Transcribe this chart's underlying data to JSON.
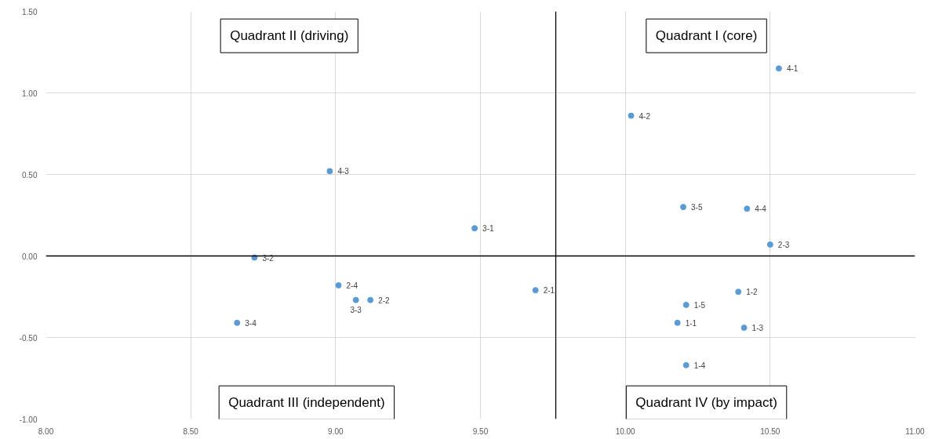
{
  "chart_data": {
    "type": "scatter",
    "color": "#5b9bd5",
    "marker": "circle",
    "grid": true,
    "x": [
      10.18,
      10.39,
      10.41,
      10.21,
      10.21,
      9.69,
      9.12,
      10.5,
      9.01,
      9.48,
      8.72,
      9.07,
      8.66,
      10.2,
      10.53,
      10.02,
      8.98,
      10.42
    ],
    "values": [
      -0.41,
      -0.22,
      -0.44,
      -0.67,
      -0.3,
      -0.21,
      -0.27,
      0.07,
      -0.18,
      0.17,
      -0.01,
      -0.27,
      -0.41,
      0.3,
      1.15,
      0.86,
      0.52,
      0.29
    ],
    "xlim": [
      8.0,
      11.0
    ],
    "ylim": [
      -1.0,
      1.5
    ],
    "xticks": [
      {
        "value": 8.0,
        "label": "8.00"
      },
      {
        "value": 8.5,
        "label": "8.50"
      },
      {
        "value": 9.0,
        "label": "9.00"
      },
      {
        "value": 9.5,
        "label": "9.50"
      },
      {
        "value": 10.0,
        "label": "10.00"
      },
      {
        "value": 10.5,
        "label": "10.50"
      },
      {
        "value": 11.0,
        "label": "11.00"
      }
    ],
    "yticks": [
      {
        "value": -1.0,
        "label": "-1.00"
      },
      {
        "value": -0.5,
        "label": "-0.50"
      },
      {
        "value": 0.0,
        "label": "0.00"
      },
      {
        "value": 0.5,
        "label": "0.50"
      },
      {
        "value": 1.0,
        "label": "1.00"
      },
      {
        "value": 1.5,
        "label": "1.50"
      }
    ],
    "ref_lines": [
      {
        "axis": "y",
        "value": 0.0,
        "color": "#000000"
      },
      {
        "axis": "x",
        "value": 9.76,
        "color": "#000000"
      }
    ],
    "annotations": [
      {
        "text": "1-1",
        "x": 10.18,
        "y": -0.41
      },
      {
        "text": "1-2",
        "x": 10.39,
        "y": -0.22
      },
      {
        "text": "1-3",
        "x": 10.41,
        "y": -0.44
      },
      {
        "text": "1-4",
        "x": 10.21,
        "y": -0.67
      },
      {
        "text": "1-5",
        "x": 10.21,
        "y": -0.3
      },
      {
        "text": "2-1",
        "x": 9.69,
        "y": -0.21
      },
      {
        "text": "2-2",
        "x": 9.12,
        "y": -0.27
      },
      {
        "text": "2-3",
        "x": 10.5,
        "y": 0.07
      },
      {
        "text": "2-4",
        "x": 9.01,
        "y": -0.18
      },
      {
        "text": "3-1",
        "x": 9.48,
        "y": 0.17
      },
      {
        "text": "3-2",
        "x": 8.72,
        "y": -0.01
      },
      {
        "text": "3-3",
        "x": 9.07,
        "y": -0.27
      },
      {
        "text": "3-4",
        "x": 8.66,
        "y": -0.41
      },
      {
        "text": "3-5",
        "x": 10.2,
        "y": 0.3
      },
      {
        "text": "4-1",
        "x": 10.53,
        "y": 1.15
      },
      {
        "text": "4-2",
        "x": 10.02,
        "y": 0.86
      },
      {
        "text": "4-3",
        "x": 8.98,
        "y": 0.52
      },
      {
        "text": "4-4",
        "x": 10.42,
        "y": 0.29
      },
      "Quadrant II (driving)",
      "Quadrant I (core)",
      "Quadrant III (independent)",
      "Quadrant IV (by impact)"
    ]
  }
}
